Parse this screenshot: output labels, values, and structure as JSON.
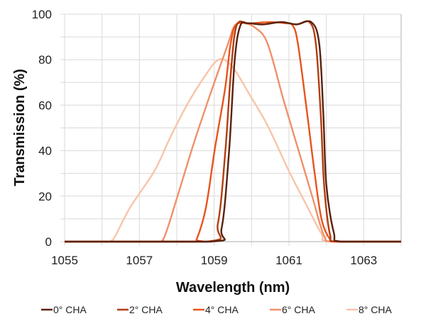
{
  "chart_data": {
    "type": "line",
    "title": "",
    "xlabel": "Wavelength (nm)",
    "ylabel": "Transmission (%)",
    "xlim": [
      1055,
      1064
    ],
    "ylim": [
      0,
      100
    ],
    "x_ticks": [
      "1055",
      "1057",
      "1059",
      "1061",
      "1063"
    ],
    "y_ticks": [
      "0",
      "20",
      "40",
      "60",
      "80",
      "100"
    ],
    "grid": true,
    "legend_position": "bottom",
    "series": [
      {
        "name": "0° CHA",
        "color": "#5a2210",
        "points": [
          [
            1055,
            0
          ],
          [
            1058.9,
            0
          ],
          [
            1059.2,
            6
          ],
          [
            1059.4,
            40
          ],
          [
            1059.55,
            80
          ],
          [
            1059.7,
            95
          ],
          [
            1059.9,
            96
          ],
          [
            1060.3,
            95.5
          ],
          [
            1060.8,
            96.5
          ],
          [
            1061.2,
            95.5
          ],
          [
            1061.6,
            96.5
          ],
          [
            1061.81,
            87
          ],
          [
            1061.92,
            56
          ],
          [
            1062.0,
            25
          ],
          [
            1062.2,
            4
          ],
          [
            1062.4,
            0
          ],
          [
            1064,
            0
          ]
        ]
      },
      {
        "name": "2° CHA",
        "color": "#b33d0e",
        "points": [
          [
            1055,
            0
          ],
          [
            1058.8,
            0
          ],
          [
            1059.1,
            8
          ],
          [
            1059.3,
            40
          ],
          [
            1059.45,
            75
          ],
          [
            1059.6,
            95
          ],
          [
            1059.9,
            96
          ],
          [
            1060.3,
            95.5
          ],
          [
            1060.8,
            96.5
          ],
          [
            1061.2,
            95.5
          ],
          [
            1061.55,
            96.5
          ],
          [
            1061.72,
            87
          ],
          [
            1061.85,
            56
          ],
          [
            1061.94,
            25
          ],
          [
            1062.1,
            3
          ],
          [
            1062.3,
            0
          ],
          [
            1064,
            0
          ]
        ]
      },
      {
        "name": "4° CHA",
        "color": "#e8541c",
        "points": [
          [
            1055,
            0
          ],
          [
            1058.4,
            0
          ],
          [
            1058.53,
            1
          ],
          [
            1058.78,
            15
          ],
          [
            1059.02,
            41
          ],
          [
            1059.29,
            67
          ],
          [
            1059.44,
            87
          ],
          [
            1059.6,
            95.5
          ],
          [
            1060.0,
            96
          ],
          [
            1060.5,
            96.5
          ],
          [
            1060.9,
            96
          ],
          [
            1061.1,
            95
          ],
          [
            1061.24,
            87
          ],
          [
            1061.49,
            56
          ],
          [
            1061.68,
            31
          ],
          [
            1061.87,
            10
          ],
          [
            1062.1,
            1
          ],
          [
            1062.3,
            0
          ],
          [
            1064,
            0
          ]
        ]
      },
      {
        "name": "6° CHA",
        "color": "#f0906a",
        "points": [
          [
            1055,
            0
          ],
          [
            1057.4,
            0
          ],
          [
            1057.64,
            1
          ],
          [
            1058.02,
            20
          ],
          [
            1058.45,
            43
          ],
          [
            1058.9,
            65
          ],
          [
            1059.35,
            86
          ],
          [
            1059.55,
            95
          ],
          [
            1059.8,
            96
          ],
          [
            1060.1,
            94
          ],
          [
            1060.43,
            87
          ],
          [
            1060.86,
            62
          ],
          [
            1061.24,
            41
          ],
          [
            1061.62,
            20
          ],
          [
            1061.94,
            2.5
          ],
          [
            1062.2,
            0
          ],
          [
            1064,
            0
          ]
        ]
      },
      {
        "name": "8° CHA",
        "color": "#f8c4aa",
        "points": [
          [
            1055,
            0
          ],
          [
            1056.1,
            0
          ],
          [
            1056.3,
            1
          ],
          [
            1056.75,
            15
          ],
          [
            1057.4,
            31
          ],
          [
            1057.83,
            46
          ],
          [
            1058.27,
            60
          ],
          [
            1058.72,
            72
          ],
          [
            1059.12,
            80
          ],
          [
            1059.48,
            77
          ],
          [
            1059.97,
            64
          ],
          [
            1060.43,
            51
          ],
          [
            1061.0,
            31
          ],
          [
            1061.44,
            17
          ],
          [
            1061.87,
            3.5
          ],
          [
            1062.1,
            0
          ],
          [
            1064,
            0
          ]
        ]
      }
    ]
  }
}
